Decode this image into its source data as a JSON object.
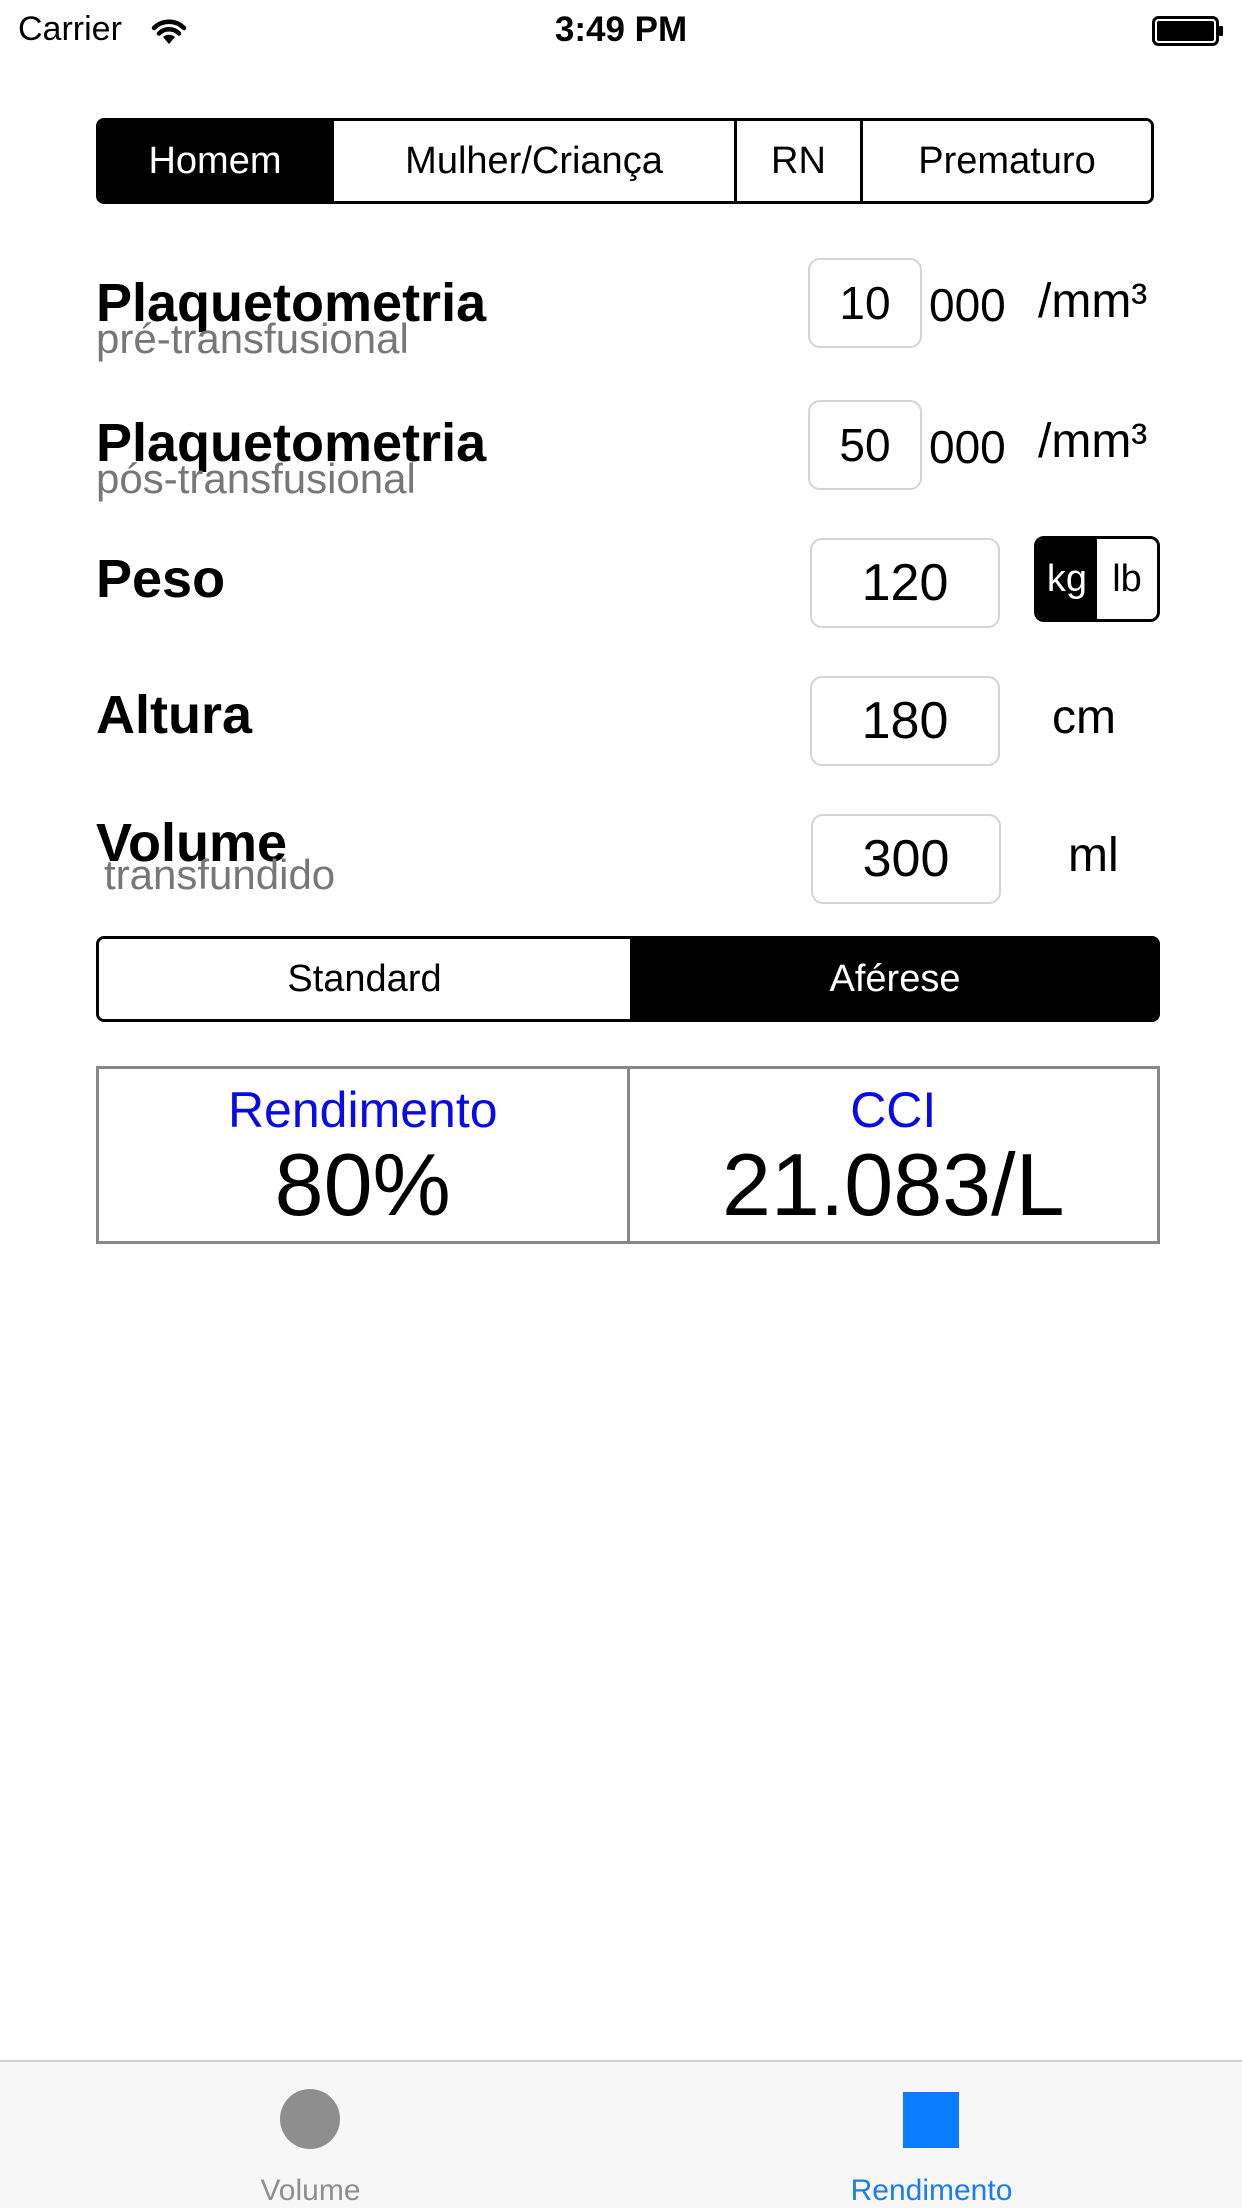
{
  "status_bar": {
    "carrier": "Carrier",
    "time": "3:49 PM"
  },
  "patient_types": [
    {
      "label": "Homem",
      "selected": true
    },
    {
      "label": "Mulher/Criança",
      "selected": false
    },
    {
      "label": "RN",
      "selected": false
    },
    {
      "label": "Prematuro",
      "selected": false
    }
  ],
  "fields": {
    "pre_platelet": {
      "title": "Plaquetometria",
      "subtitle": "pré-transfusional",
      "value": "10",
      "suffix": "000",
      "unit": "/mm³"
    },
    "post_platelet": {
      "title": "Plaquetometria",
      "subtitle": "pós-transfusional",
      "value": "50",
      "suffix": "000",
      "unit": "/mm³"
    },
    "weight": {
      "title": "Peso",
      "value": "120",
      "unit_options": [
        "kg",
        "lb"
      ],
      "selected_unit": "kg"
    },
    "height": {
      "title": "Altura",
      "value": "180",
      "unit": "cm"
    },
    "volume": {
      "title": "Volume",
      "subtitle": "transfundido",
      "value": "300",
      "unit": "ml"
    }
  },
  "methods": [
    {
      "label": "Standard",
      "selected": false
    },
    {
      "label": "Aférese",
      "selected": true
    }
  ],
  "results": {
    "yield": {
      "label": "Rendimento",
      "value": "80%"
    },
    "cci": {
      "label": "CCI",
      "value": "21.083/L"
    }
  },
  "tab_bar": {
    "tabs": [
      {
        "label": "Volume",
        "icon": "circle-icon",
        "active": false
      },
      {
        "label": "Rendimento",
        "icon": "square-icon",
        "active": true
      }
    ]
  },
  "colors": {
    "accent": "#0a0ae6",
    "tab_active": "#1a7cf0",
    "tab_active_icon": "#0a7cff",
    "tab_inactive": "#8e8e8e",
    "subtitle": "#777777"
  }
}
